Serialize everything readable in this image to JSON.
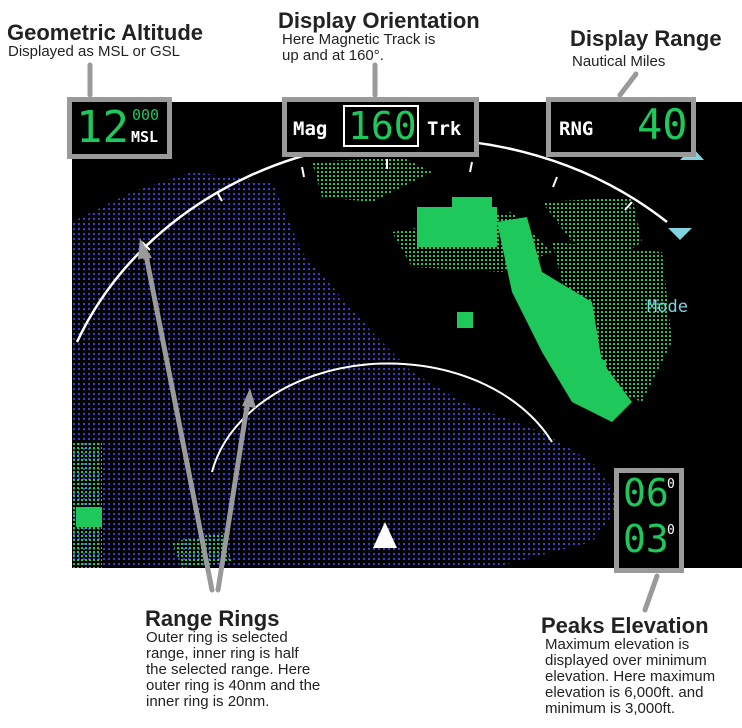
{
  "callouts": {
    "altitude": {
      "title": "Geometric Altitude",
      "sub": "Displayed as MSL or GSL"
    },
    "orientation": {
      "title": "Display Orientation",
      "sub": [
        "Here Magnetic Track is",
        "up and at 160°."
      ]
    },
    "range": {
      "title": "Display Range",
      "sub": "Nautical Miles"
    },
    "rings": {
      "title": "Range Rings",
      "sub": [
        "Outer ring is selected",
        "range, inner ring is half",
        "the selected range. Here",
        "outer ring is 40nm and the",
        "inner ring is 20nm."
      ]
    },
    "peaks": {
      "title": "Peaks Elevation",
      "sub": [
        "Maximum elevation is",
        "displayed over minimum",
        "elevation. Here maximum",
        "elevation is 6,000ft. and",
        "minimum is 3,000ft."
      ]
    }
  },
  "display": {
    "altitude": {
      "big": "12",
      "small": "000",
      "ref": "MSL"
    },
    "orientation": {
      "left": "Mag",
      "heading": "160",
      "right": "Trk"
    },
    "range": {
      "label": "RNG",
      "value": "40"
    },
    "mode_label": "Mode",
    "peaks": {
      "max": "06",
      "min": "03",
      "deg": "0"
    }
  },
  "colors": {
    "screen": "#000000",
    "terrain_green": "#1ec85a",
    "water_blue": "#3b3fd0",
    "box_border": "#9a9a9a",
    "cyan": "#7fd4e0"
  }
}
